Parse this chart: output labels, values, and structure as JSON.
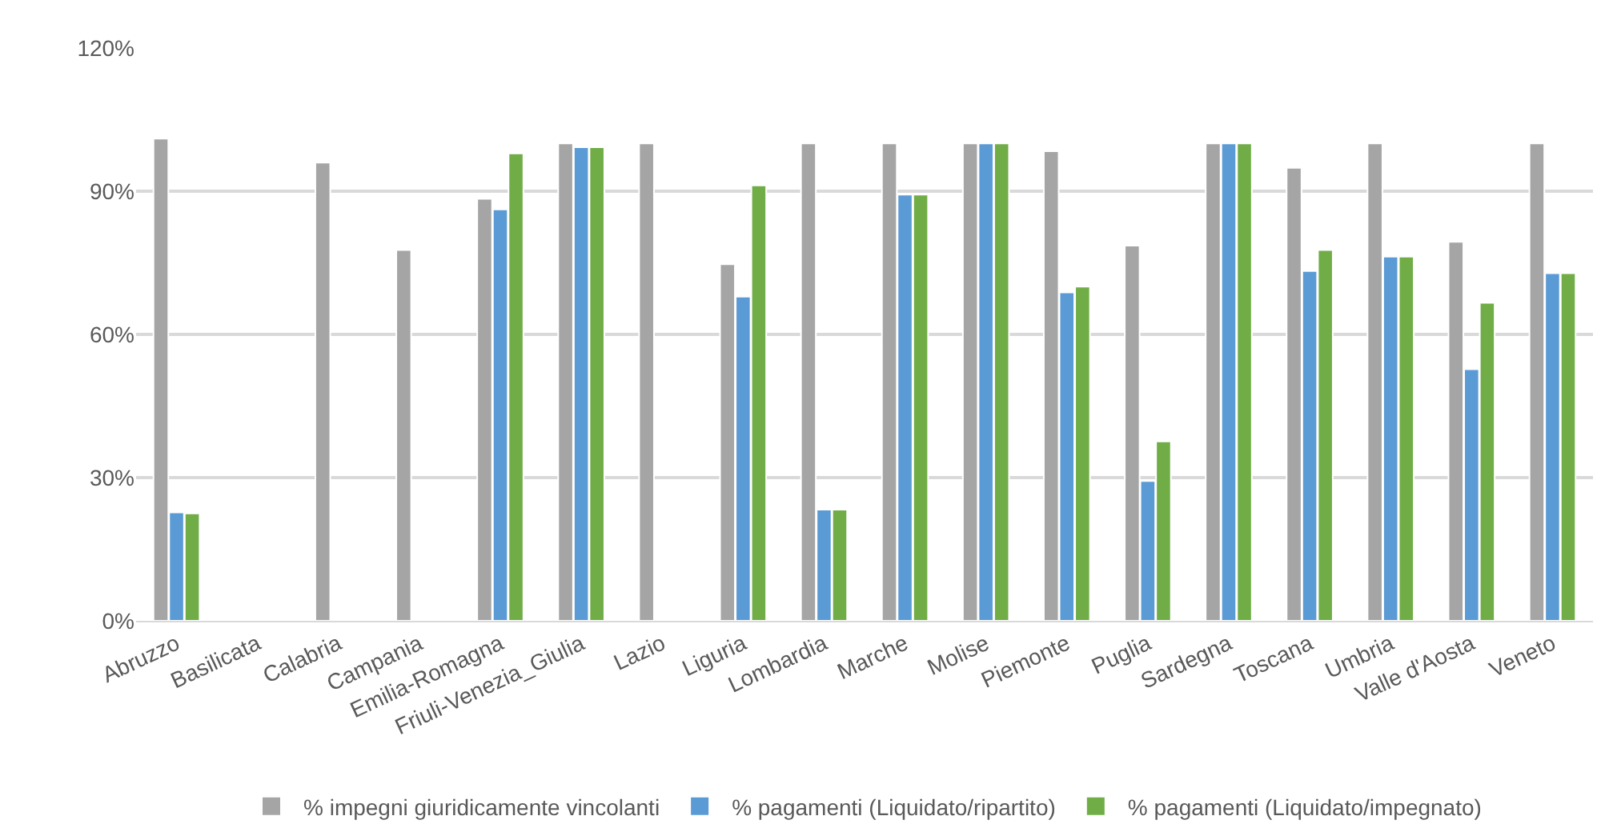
{
  "chart_data": {
    "type": "bar",
    "categories": [
      "Abruzzo",
      "Basilicata",
      "Calabria",
      "Campania",
      "Emilia-Romagna",
      "Friuli-Venezia_Giulia",
      "Lazio",
      "Liguria",
      "Lombardia",
      "Marche",
      "Molise",
      "Piemonte",
      "Puglia",
      "Sardegna",
      "Toscana",
      "Umbria",
      "Valle d'Aosta",
      "Veneto"
    ],
    "series": [
      {
        "name": "% impegni giuridicamente vincolanti",
        "color": "#a5a5a5",
        "values": [
          101,
          null,
          96,
          77.7,
          88.4,
          100,
          100,
          74.7,
          100,
          100,
          100,
          98.4,
          78.6,
          100,
          94.9,
          100,
          79.4,
          100
        ]
      },
      {
        "name": "% pagamenti (Liquidato/ripartito)",
        "color": "#5b9bd5",
        "values": [
          22.7,
          null,
          null,
          null,
          86.2,
          99.2,
          null,
          67.9,
          23.3,
          89.3,
          100,
          68.8,
          29.3,
          100,
          73.3,
          76.3,
          52.7,
          72.8
        ]
      },
      {
        "name": "% pagamenti (Liquidato/impegnato)",
        "color": "#70ad47",
        "values": [
          22.5,
          null,
          null,
          null,
          97.9,
          99.2,
          null,
          91.2,
          23.3,
          89.3,
          100,
          70,
          37.6,
          100,
          77.7,
          76.3,
          66.6,
          72.8
        ]
      }
    ],
    "ylim": [
      0,
      120
    ],
    "yticks": [
      {
        "value": 0,
        "label": "0%"
      },
      {
        "value": 30,
        "label": "30%"
      },
      {
        "value": 60,
        "label": "60%"
      },
      {
        "value": 90,
        "label": "90%"
      },
      {
        "value": 120,
        "label": "120%"
      }
    ],
    "grid": "y",
    "legend": "bottom"
  }
}
